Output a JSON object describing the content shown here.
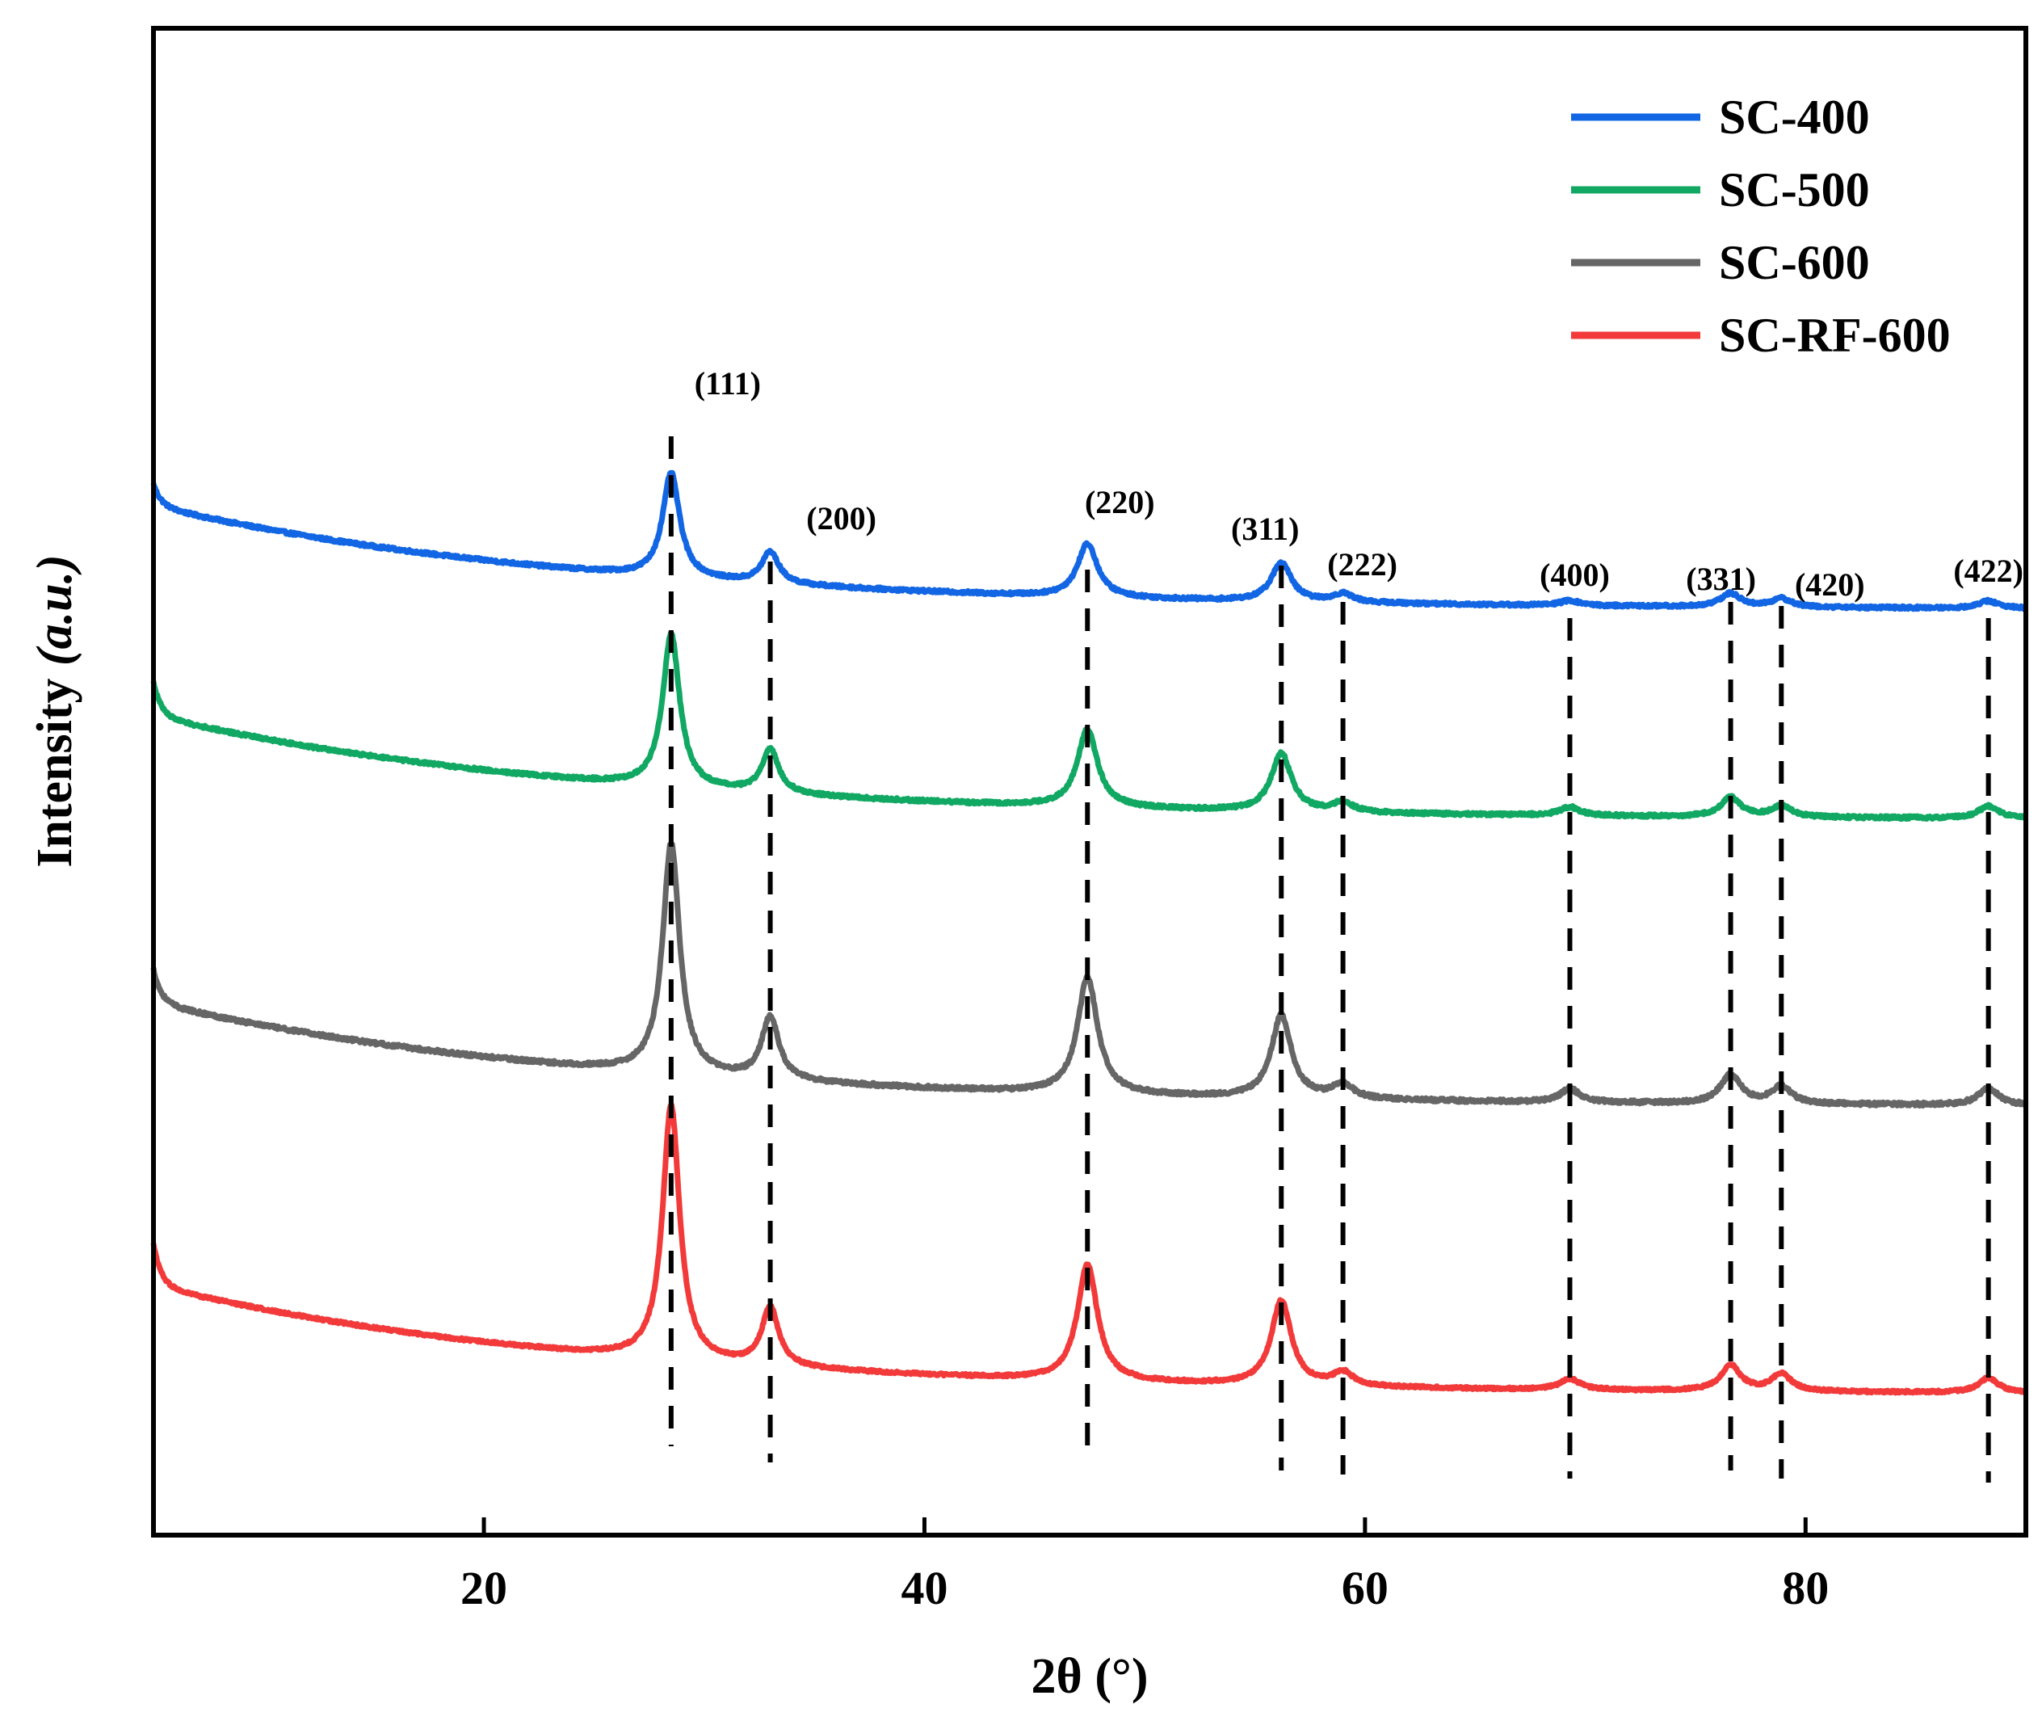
{
  "chart_data": {
    "type": "line",
    "title": "",
    "xlabel": "2θ (°)",
    "ylabel_main": "Intensity",
    "ylabel_unit": "(a.u.)",
    "xlim": [
      5,
      90
    ],
    "x_ticks": [
      20,
      40,
      60,
      80
    ],
    "y_ticks": [],
    "grid": false,
    "legend_position": "top-right",
    "series": [
      {
        "name": "SC-400",
        "color": "#1266E4",
        "baseline_start": 5.3,
        "baseline_end": 1.0,
        "edge_spike": 0.9,
        "noise": 0.06,
        "peaks": [
          {
            "x": 28.5,
            "height": 4.3
          },
          {
            "x": 33.0,
            "height": 1.3
          },
          {
            "x": 47.4,
            "height": 2.2
          },
          {
            "x": 56.2,
            "height": 1.6
          },
          {
            "x": 59.0,
            "height": 0.35
          },
          {
            "x": 69.3,
            "height": 0.2
          },
          {
            "x": 76.6,
            "height": 0.55
          },
          {
            "x": 78.9,
            "height": 0.35
          },
          {
            "x": 88.3,
            "height": 0.3
          }
        ]
      },
      {
        "name": "SC-500",
        "color": "#10A862",
        "baseline_start": 5.3,
        "baseline_end": 1.0,
        "edge_spike": 1.4,
        "noise": 0.06,
        "peaks": [
          {
            "x": 28.5,
            "height": 6.3
          },
          {
            "x": 33.0,
            "height": 1.8
          },
          {
            "x": 47.4,
            "height": 3.2
          },
          {
            "x": 56.2,
            "height": 2.4
          },
          {
            "x": 59.0,
            "height": 0.4
          },
          {
            "x": 69.3,
            "height": 0.35
          },
          {
            "x": 76.6,
            "height": 0.8
          },
          {
            "x": 78.9,
            "height": 0.45
          },
          {
            "x": 88.3,
            "height": 0.5
          }
        ]
      },
      {
        "name": "SC-600",
        "color": "#666666",
        "baseline_start": 5.3,
        "baseline_end": 1.0,
        "edge_spike": 1.4,
        "noise": 0.07,
        "peaks": [
          {
            "x": 28.5,
            "height": 9.5
          },
          {
            "x": 33.0,
            "height": 2.6
          },
          {
            "x": 47.4,
            "height": 4.8
          },
          {
            "x": 56.2,
            "height": 3.4
          },
          {
            "x": 59.0,
            "height": 0.6
          },
          {
            "x": 69.3,
            "height": 0.55
          },
          {
            "x": 76.6,
            "height": 1.2
          },
          {
            "x": 78.9,
            "height": 0.7
          },
          {
            "x": 88.3,
            "height": 0.7
          }
        ]
      },
      {
        "name": "SC-RF-600",
        "color": "#F23A3A",
        "baseline_start": 5.3,
        "baseline_end": 0.8,
        "edge_spike": 1.7,
        "noise": 0.05,
        "peaks": [
          {
            "x": 28.5,
            "height": 10.5
          },
          {
            "x": 33.0,
            "height": 2.4
          },
          {
            "x": 47.4,
            "height": 4.8
          },
          {
            "x": 56.2,
            "height": 3.5
          },
          {
            "x": 59.0,
            "height": 0.55
          },
          {
            "x": 69.3,
            "height": 0.45
          },
          {
            "x": 76.6,
            "height": 1.05
          },
          {
            "x": 78.9,
            "height": 0.7
          },
          {
            "x": 88.3,
            "height": 0.6
          }
        ]
      }
    ],
    "reference_lines": [
      {
        "x": 28.5,
        "label": "(111)"
      },
      {
        "x": 33.0,
        "label": "(200)"
      },
      {
        "x": 47.4,
        "label": "(220)"
      },
      {
        "x": 56.2,
        "label": "(311)"
      },
      {
        "x": 59.0,
        "label": "(222)"
      },
      {
        "x": 69.3,
        "label": "(400)"
      },
      {
        "x": 76.6,
        "label": "(331)"
      },
      {
        "x": 78.9,
        "label": "(420)"
      },
      {
        "x": 88.3,
        "label": "(422)"
      }
    ]
  }
}
